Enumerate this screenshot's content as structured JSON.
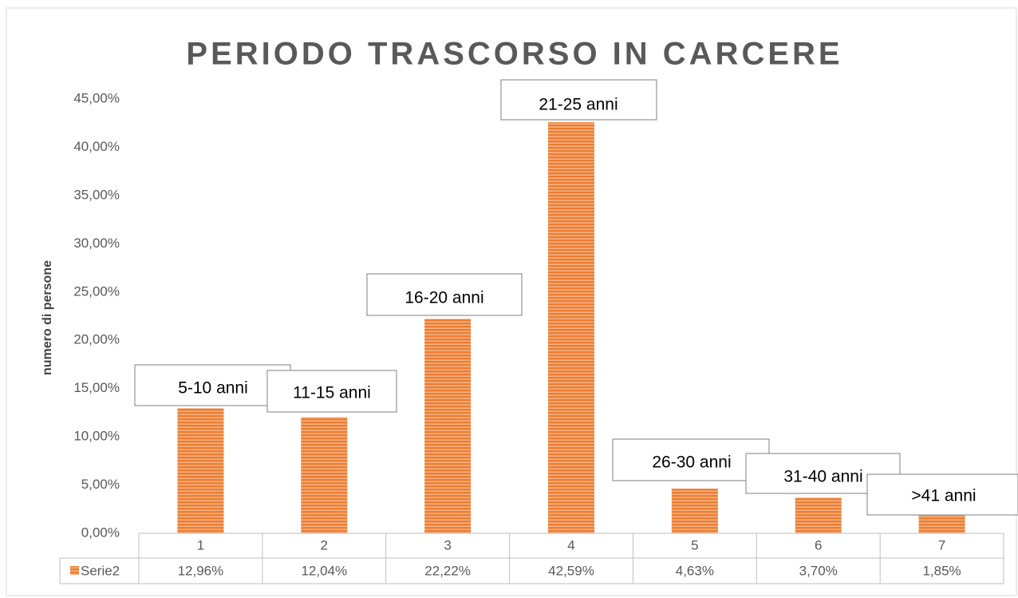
{
  "chart_data": {
    "type": "bar",
    "title": "PERIODO TRASCORSO IN CARCERE",
    "y_label": "numero di persone",
    "categories": [
      "1",
      "2",
      "3",
      "4",
      "5",
      "6",
      "7"
    ],
    "series": [
      {
        "name": "Serie2",
        "color": "#ed7d31",
        "values": [
          12.96,
          12.04,
          22.22,
          42.59,
          4.63,
          3.7,
          1.85
        ],
        "value_labels": [
          "12,96%",
          "12,04%",
          "22,22%",
          "42,59%",
          "4,63%",
          "3,70%",
          "1,85%"
        ]
      }
    ],
    "annotations": [
      "5-10 anni",
      "11-15 anni",
      "16-20 anni",
      "21-25 anni",
      "26-30 anni",
      "31-40 anni",
      ">41 anni"
    ],
    "ylim": [
      0,
      45
    ],
    "yticks": [
      {
        "value": 0,
        "label": "0,00%"
      },
      {
        "value": 5,
        "label": "5,00%"
      },
      {
        "value": 10,
        "label": "10,00%"
      },
      {
        "value": 15,
        "label": "15,00%"
      },
      {
        "value": 20,
        "label": "20,00%"
      },
      {
        "value": 25,
        "label": "25,00%"
      },
      {
        "value": 30,
        "label": "30,00%"
      },
      {
        "value": 35,
        "label": "35,00%"
      },
      {
        "value": 40,
        "label": "40,00%"
      },
      {
        "value": 45,
        "label": "45,00%"
      }
    ],
    "grid": false,
    "data_table": true
  }
}
